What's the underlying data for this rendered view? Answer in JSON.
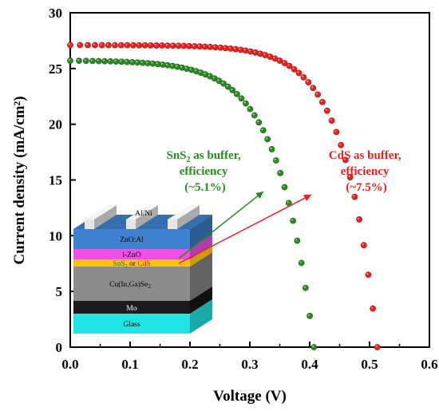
{
  "chart_data": {
    "type": "scatter",
    "xlabel": "Voltage (V)",
    "ylabel": "Current density (mA/cm²)",
    "xlim": [
      0.0,
      0.6
    ],
    "ylim": [
      0,
      30
    ],
    "xticks": [
      "0.0",
      "0.1",
      "0.2",
      "0.3",
      "0.4",
      "0.5",
      "0.6"
    ],
    "yticks": [
      "0",
      "5",
      "10",
      "15",
      "20",
      "25",
      "30"
    ],
    "grid": false,
    "series": [
      {
        "id": "cds",
        "color": "#e8201e",
        "jsc": 27.1,
        "voc": 0.513,
        "vt": 0.055,
        "points_count": 58
      },
      {
        "id": "sns2",
        "color": "#2a8a22",
        "jsc": 25.7,
        "voc": 0.407,
        "vt": 0.06,
        "points_count": 50
      }
    ],
    "annotations": [
      {
        "id": "sns2",
        "color": "#2a8a22",
        "line1_pre": "SnS",
        "line1_sub": "2",
        "line1_post": " as buffer,",
        "line2": "efficiency",
        "line3": "(~5.1%)"
      },
      {
        "id": "cds",
        "color": "#e8201e",
        "line1": "CdS as buffer,",
        "line2": "efficiency",
        "line3": "(~7.5%)"
      }
    ],
    "inset": {
      "layers": {
        "alni": "Al/Ni",
        "znoal": "ZnO:Al",
        "izno": "i-ZnO",
        "buffer_a": "SnS",
        "buffer_a_sub": "2",
        "buffer_or": " or ",
        "buffer_b": "CdS",
        "cigs": "Cu(In,Ga)Se",
        "cigs_sub": "2",
        "mo": "Mo",
        "glass": "Glass"
      },
      "colors": {
        "glass": "#22e3e3",
        "mo": "#1c1c1c",
        "cigs": "#8c8c8c",
        "buffer": "#ffc400",
        "izno": "#ee4fe4",
        "znoal": "#3f82cf",
        "alni": "#e6e6e6"
      }
    }
  }
}
